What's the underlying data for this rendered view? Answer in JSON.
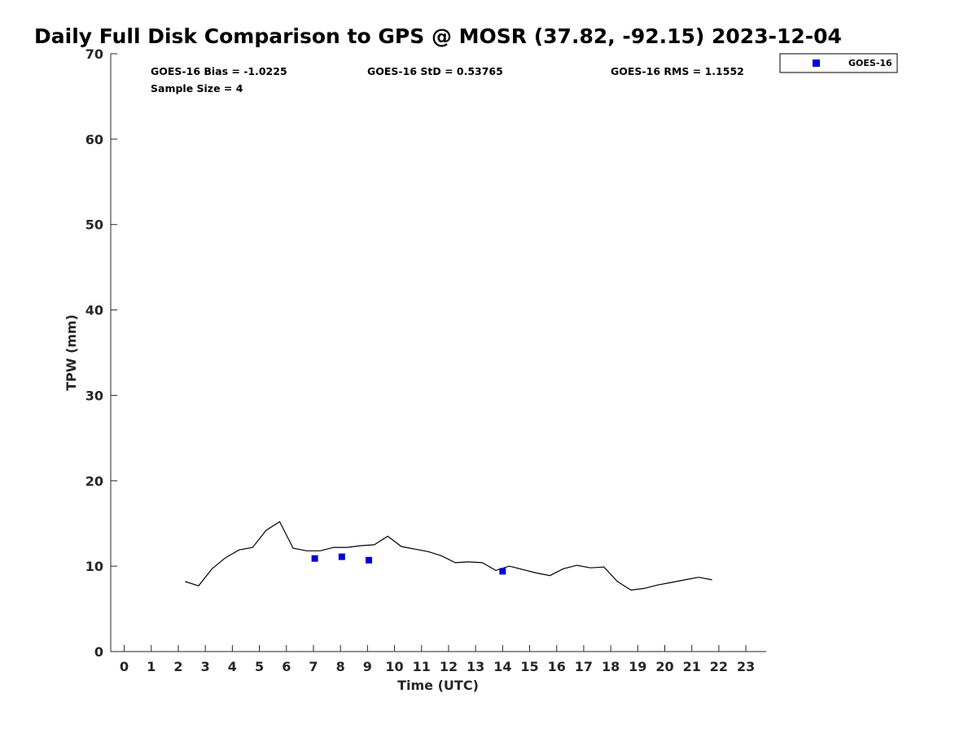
{
  "chart_data": {
    "type": "scatter",
    "title": "Daily Full Disk Comparison to GPS @ MOSR (37.82, -92.15) 2023-12-04",
    "xlabel": "Time (UTC)",
    "ylabel": "TPW (mm)",
    "xlim": [
      -0.5,
      23.75
    ],
    "ylim": [
      0,
      70
    ],
    "x_ticks": [
      0,
      1,
      2,
      3,
      4,
      5,
      6,
      7,
      8,
      9,
      10,
      11,
      12,
      13,
      14,
      15,
      16,
      17,
      18,
      19,
      20,
      21,
      22,
      23
    ],
    "y_ticks": [
      0,
      10,
      20,
      30,
      40,
      50,
      60,
      70
    ],
    "grid": false,
    "legend_position": "top-right",
    "stats": {
      "bias": "GOES-16 Bias = -1.0225",
      "std": "GOES-16 StD = 0.53765",
      "rms": "GOES-16 RMS = 1.1552",
      "sample": "Sample Size = 4"
    },
    "series": [
      {
        "kind": "line",
        "color": "#000000",
        "points": [
          [
            2.25,
            8.2
          ],
          [
            2.75,
            7.7
          ],
          [
            3.25,
            9.7
          ],
          [
            3.75,
            11.0
          ],
          [
            4.25,
            11.9
          ],
          [
            4.75,
            12.2
          ],
          [
            5.25,
            14.2
          ],
          [
            5.75,
            15.2
          ],
          [
            6.25,
            12.1
          ],
          [
            6.75,
            11.8
          ],
          [
            7.25,
            11.8
          ],
          [
            7.75,
            12.2
          ],
          [
            8.25,
            12.2
          ],
          [
            8.75,
            12.4
          ],
          [
            9.25,
            12.5
          ],
          [
            9.75,
            13.5
          ],
          [
            10.25,
            12.3
          ],
          [
            10.75,
            12.0
          ],
          [
            11.25,
            11.7
          ],
          [
            11.75,
            11.2
          ],
          [
            12.25,
            10.4
          ],
          [
            12.75,
            10.5
          ],
          [
            13.25,
            10.4
          ],
          [
            13.75,
            9.5
          ],
          [
            14.25,
            10.0
          ],
          [
            14.75,
            9.6
          ],
          [
            15.25,
            9.2
          ],
          [
            15.75,
            8.9
          ],
          [
            16.25,
            9.7
          ],
          [
            16.75,
            10.1
          ],
          [
            17.25,
            9.8
          ],
          [
            17.75,
            9.9
          ],
          [
            18.25,
            8.2
          ],
          [
            18.75,
            7.2
          ],
          [
            19.25,
            7.4
          ],
          [
            19.75,
            7.8
          ],
          [
            20.25,
            8.1
          ],
          [
            20.75,
            8.4
          ],
          [
            21.25,
            8.7
          ],
          [
            21.75,
            8.4
          ]
        ]
      },
      {
        "name": "GOES-16",
        "kind": "scatter",
        "marker": "square",
        "color": "#0000dd",
        "points": [
          [
            7.05,
            10.9
          ],
          [
            8.05,
            11.1
          ],
          [
            9.05,
            10.7
          ],
          [
            14.0,
            9.4
          ]
        ]
      }
    ]
  }
}
